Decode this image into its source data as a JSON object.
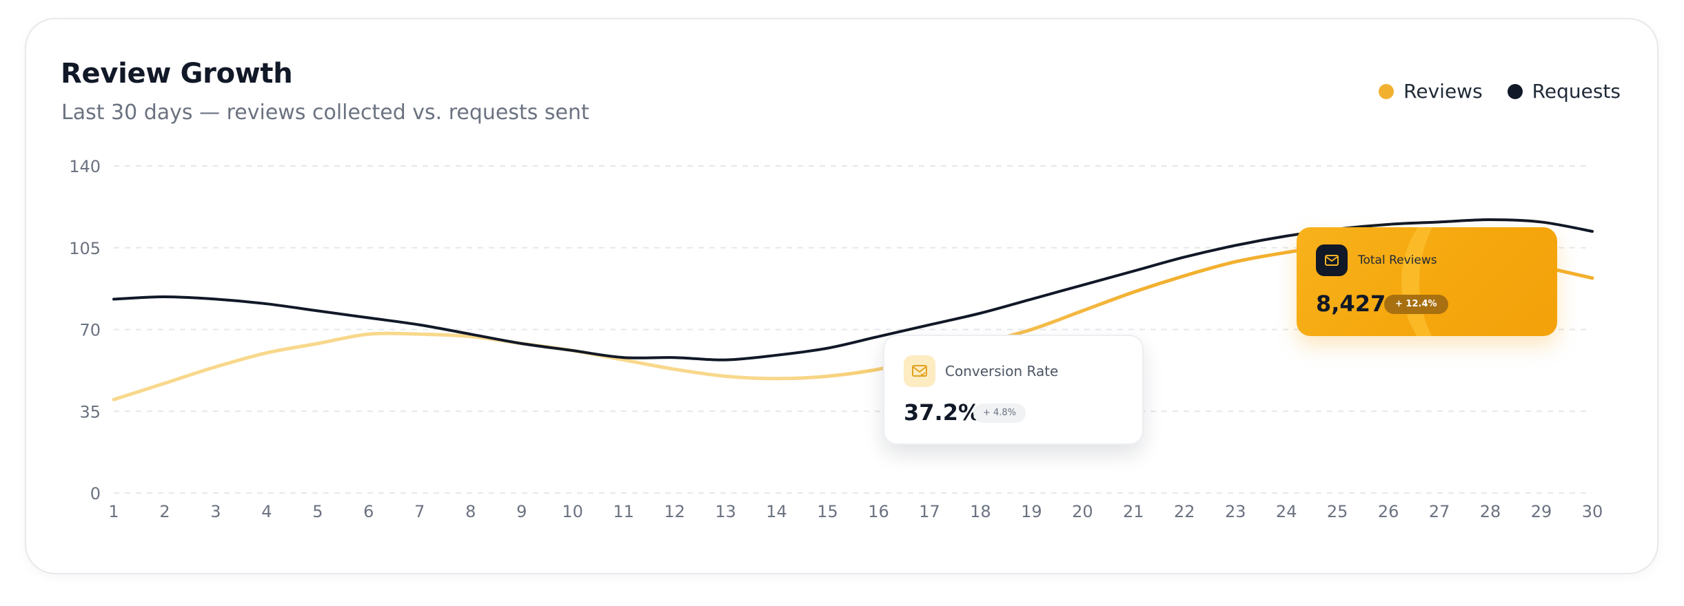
{
  "header": {
    "title": "Review Growth",
    "subtitle": "Last 30 days — reviews collected vs. requests sent"
  },
  "legend": [
    {
      "label": "Reviews",
      "color": "#f2b02f"
    },
    {
      "label": "Requests",
      "color": "#111827"
    }
  ],
  "colors": {
    "reviews": "#f2b02f",
    "reviews_faded": "#f8d88c",
    "requests": "#111827",
    "grid": "#e5e7eb"
  },
  "chart_data": {
    "type": "line",
    "x": [
      1,
      2,
      3,
      4,
      5,
      6,
      7,
      8,
      9,
      10,
      11,
      12,
      13,
      14,
      15,
      16,
      17,
      18,
      19,
      20,
      21,
      22,
      23,
      24,
      25,
      26,
      27,
      28,
      29,
      30
    ],
    "series": [
      {
        "name": "Reviews",
        "values": [
          40,
          47,
          54,
          60,
          64,
          68,
          68,
          67,
          64,
          61,
          57,
          53,
          50,
          49,
          50,
          53,
          58,
          64,
          70,
          78,
          86,
          93,
          99,
          103,
          106,
          107,
          106,
          102,
          97,
          92
        ]
      },
      {
        "name": "Requests",
        "values": [
          83,
          84,
          83,
          81,
          78,
          75,
          72,
          68,
          64,
          61,
          58,
          58,
          57,
          59,
          62,
          67,
          72,
          77,
          83,
          89,
          95,
          101,
          106,
          110,
          113,
          115,
          116,
          117,
          116,
          112
        ]
      }
    ],
    "xlabel": "",
    "ylabel": "",
    "ylim": [
      0,
      140
    ],
    "yticks": [
      0,
      35,
      70,
      105,
      140
    ],
    "grid": true,
    "legend_position": "top-right"
  },
  "tooltips": {
    "conversion": {
      "label": "Conversion Rate",
      "value": "37.2%",
      "change": "+ 4.8%",
      "icon": "mail-check-icon"
    },
    "total_reviews": {
      "label": "Total Reviews",
      "value": "8,427",
      "change": "+ 12.4%",
      "icon": "mail-icon"
    }
  }
}
